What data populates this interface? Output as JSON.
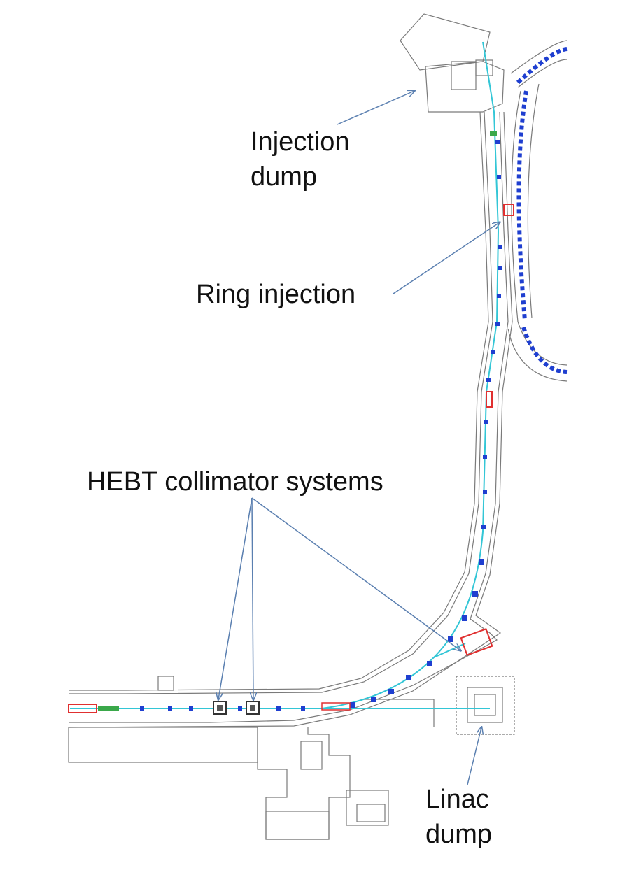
{
  "labels": {
    "injection_dump": [
      "Injection",
      "dump"
    ],
    "ring_injection": "Ring injection",
    "hebt_collimators": "HEBT collimator systems",
    "linac_dump": [
      "Linac",
      "dump"
    ]
  },
  "colors": {
    "wall": "#7a7a7a",
    "beam": "#33c6d6",
    "magnet": "#1f3fd0",
    "device": "#e03030",
    "arrow": "#5a7fb0",
    "green": "#3aa84a"
  }
}
